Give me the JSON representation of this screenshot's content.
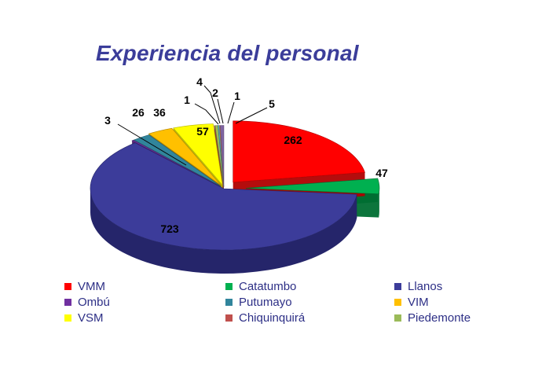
{
  "chart_data": {
    "type": "pie",
    "title": "Experiencia del personal",
    "series": [
      {
        "label": "VMM",
        "value": 262,
        "color": "#ff0000",
        "dark": "#b00000"
      },
      {
        "label": "Catatumbo",
        "value": 47,
        "color": "#00b050",
        "dark": "#006e32"
      },
      {
        "label": "Llanos",
        "value": 723,
        "color": "#3c3c9a",
        "dark": "#25256a"
      },
      {
        "label": "Ombú",
        "value": 3,
        "color": "#7030a0",
        "dark": "#4a1f6b"
      },
      {
        "label": "Putumayo",
        "value": 26,
        "color": "#31859c",
        "dark": "#1f5866"
      },
      {
        "label": "VIM",
        "value": 36,
        "color": "#ffc000",
        "dark": "#b08400"
      },
      {
        "label": "VSM",
        "value": 57,
        "color": "#ffff00",
        "dark": "#b5b500"
      },
      {
        "label": "Chiquinquirá",
        "value": 1,
        "color": "#c0504d",
        "dark": "#8a3331"
      },
      {
        "label": "Piedemonte",
        "value": 4,
        "color": "#9bbb59",
        "dark": "#6b833c"
      },
      {
        "label": "",
        "value": 2,
        "color": "#4bacc6",
        "dark": "#2f7487"
      },
      {
        "label": "",
        "value": 1,
        "color": "#f79646",
        "dark": "#b0692f"
      },
      {
        "label": "",
        "value": 5,
        "color": "#8064a2",
        "dark": "#574470"
      }
    ],
    "legend_position": "bottom"
  }
}
